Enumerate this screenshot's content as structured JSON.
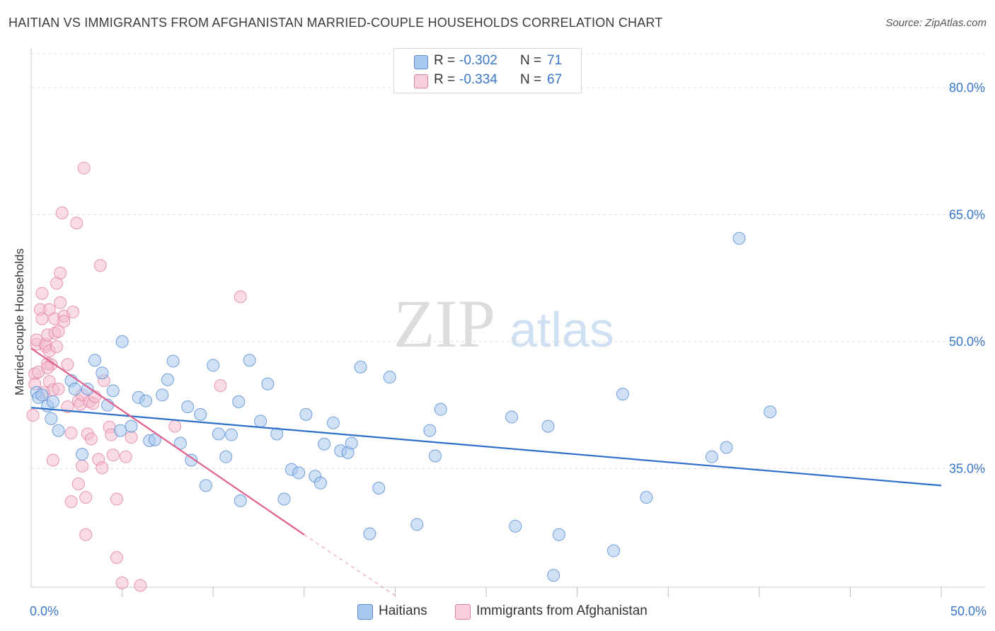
{
  "title": "HAITIAN VS IMMIGRANTS FROM AFGHANISTAN MARRIED-COUPLE HOUSEHOLDS CORRELATION CHART",
  "source": "Source: ZipAtlas.com",
  "watermark": {
    "zip": "ZIP",
    "atlas": "atlas"
  },
  "stats": [
    {
      "r_label": "R =",
      "r_value": "-0.302",
      "n_label": "N =",
      "n_value": "71"
    },
    {
      "r_label": "R =",
      "r_value": "-0.334",
      "n_label": "N =",
      "n_value": "67"
    }
  ],
  "legend": [
    {
      "label": "Haitians"
    },
    {
      "label": "Immigrants from Afghanistan"
    }
  ],
  "colors": {
    "haitian_fill": "#a9c8ee",
    "haitian_stroke": "#5b8fd4",
    "haitian_line": "#2e6fcb",
    "afghan_fill": "#f4bdd0",
    "afghan_stroke": "#e27fa2",
    "afghan_line": "#e0608f",
    "axis_text": "#3a77c8",
    "grid": "#dddddd"
  },
  "chart_data": {
    "type": "scatter",
    "xlabel": "",
    "ylabel": "Married-couple Households",
    "xlim": [
      0,
      50
    ],
    "ylim": [
      21,
      84
    ],
    "x_tick_labels": [
      {
        "value": 0,
        "label": "0.0%"
      },
      {
        "value": 50,
        "label": "50.0%"
      }
    ],
    "y_tick_labels": [
      {
        "value": 80,
        "label": "80.0%"
      },
      {
        "value": 65,
        "label": "65.0%"
      },
      {
        "value": 50,
        "label": "50.0%"
      },
      {
        "value": 35,
        "label": "35.0%"
      }
    ],
    "x_minor_ticks": [
      5,
      10,
      15,
      20,
      25,
      30,
      35,
      40,
      45,
      50
    ],
    "series": [
      {
        "name": "Haitians",
        "r": -0.302,
        "n": 71,
        "trend": {
          "x": [
            0,
            50
          ],
          "y": [
            42.2,
            33.0
          ]
        },
        "points": [
          [
            0.3,
            44.0
          ],
          [
            0.4,
            43.4
          ],
          [
            0.6,
            43.7
          ],
          [
            0.9,
            42.4
          ],
          [
            1.1,
            40.9
          ],
          [
            1.2,
            42.9
          ],
          [
            1.5,
            39.5
          ],
          [
            2.2,
            45.4
          ],
          [
            2.4,
            44.4
          ],
          [
            2.8,
            36.7
          ],
          [
            3.1,
            44.4
          ],
          [
            3.5,
            47.8
          ],
          [
            3.9,
            46.3
          ],
          [
            4.2,
            42.5
          ],
          [
            4.5,
            44.2
          ],
          [
            4.9,
            39.5
          ],
          [
            5.0,
            50.0
          ],
          [
            5.5,
            40.0
          ],
          [
            5.9,
            43.4
          ],
          [
            6.3,
            43.0
          ],
          [
            6.5,
            38.3
          ],
          [
            6.8,
            38.4
          ],
          [
            7.2,
            43.7
          ],
          [
            7.5,
            45.5
          ],
          [
            7.8,
            47.7
          ],
          [
            8.2,
            38.0
          ],
          [
            8.6,
            42.3
          ],
          [
            8.8,
            36.0
          ],
          [
            9.3,
            41.4
          ],
          [
            9.6,
            33.0
          ],
          [
            10.0,
            47.2
          ],
          [
            10.3,
            39.1
          ],
          [
            10.7,
            36.4
          ],
          [
            11.0,
            39.0
          ],
          [
            11.4,
            42.9
          ],
          [
            11.5,
            31.2
          ],
          [
            12.0,
            47.8
          ],
          [
            12.6,
            40.6
          ],
          [
            13.0,
            45.0
          ],
          [
            13.5,
            39.1
          ],
          [
            13.9,
            31.4
          ],
          [
            14.3,
            34.9
          ],
          [
            14.7,
            34.5
          ],
          [
            15.1,
            41.4
          ],
          [
            15.6,
            34.1
          ],
          [
            15.9,
            33.3
          ],
          [
            16.1,
            37.9
          ],
          [
            16.6,
            40.4
          ],
          [
            17.0,
            37.1
          ],
          [
            17.4,
            36.9
          ],
          [
            17.6,
            38.0
          ],
          [
            18.1,
            47.0
          ],
          [
            18.6,
            27.3
          ],
          [
            19.1,
            32.7
          ],
          [
            19.7,
            45.8
          ],
          [
            21.2,
            28.4
          ],
          [
            21.9,
            39.5
          ],
          [
            22.2,
            36.5
          ],
          [
            22.5,
            42.0
          ],
          [
            26.4,
            41.1
          ],
          [
            26.6,
            28.2
          ],
          [
            28.4,
            40.0
          ],
          [
            28.7,
            22.4
          ],
          [
            29.0,
            27.2
          ],
          [
            32.0,
            25.3
          ],
          [
            32.5,
            43.8
          ],
          [
            33.8,
            31.6
          ],
          [
            37.4,
            36.4
          ],
          [
            38.2,
            37.5
          ],
          [
            38.9,
            62.2
          ],
          [
            40.6,
            41.7
          ]
        ]
      },
      {
        "name": "Immigrants from Afghanistan",
        "r": -0.334,
        "n": 67,
        "trend": {
          "x": [
            0,
            15
          ],
          "y": [
            49.2,
            27.2
          ]
        },
        "trend_dashed": {
          "x": [
            15,
            20
          ],
          "y": [
            27.2,
            20.0
          ]
        },
        "points": [
          [
            0.1,
            41.3
          ],
          [
            0.2,
            46.2
          ],
          [
            0.2,
            45.0
          ],
          [
            0.3,
            49.7
          ],
          [
            0.3,
            50.2
          ],
          [
            0.4,
            46.4
          ],
          [
            0.5,
            53.8
          ],
          [
            0.6,
            52.7
          ],
          [
            0.6,
            55.7
          ],
          [
            0.8,
            49.4
          ],
          [
            0.8,
            49.7
          ],
          [
            0.9,
            47.4
          ],
          [
            0.9,
            50.8
          ],
          [
            1.0,
            45.3
          ],
          [
            1.0,
            53.8
          ],
          [
            1.0,
            48.9
          ],
          [
            1.1,
            47.3
          ],
          [
            1.2,
            44.3
          ],
          [
            1.3,
            52.7
          ],
          [
            1.3,
            51.0
          ],
          [
            1.4,
            56.9
          ],
          [
            1.4,
            49.4
          ],
          [
            1.5,
            51.2
          ],
          [
            1.6,
            54.6
          ],
          [
            1.6,
            58.1
          ],
          [
            1.7,
            65.2
          ],
          [
            1.8,
            53.0
          ],
          [
            1.8,
            52.4
          ],
          [
            2.0,
            47.3
          ],
          [
            2.2,
            39.2
          ],
          [
            2.2,
            31.1
          ],
          [
            2.3,
            53.5
          ],
          [
            2.5,
            64.0
          ],
          [
            2.6,
            33.2
          ],
          [
            2.6,
            43.0
          ],
          [
            2.7,
            42.6
          ],
          [
            2.8,
            43.7
          ],
          [
            2.8,
            35.3
          ],
          [
            2.9,
            70.5
          ],
          [
            3.0,
            31.6
          ],
          [
            3.0,
            27.2
          ],
          [
            3.1,
            39.1
          ],
          [
            3.2,
            42.9
          ],
          [
            3.3,
            38.5
          ],
          [
            3.4,
            42.7
          ],
          [
            3.7,
            36.1
          ],
          [
            3.8,
            59.0
          ],
          [
            3.9,
            35.1
          ],
          [
            4.0,
            45.4
          ],
          [
            4.3,
            39.9
          ],
          [
            4.4,
            39.0
          ],
          [
            4.5,
            36.6
          ],
          [
            4.7,
            31.4
          ],
          [
            4.7,
            24.5
          ],
          [
            5.0,
            21.5
          ],
          [
            5.2,
            36.4
          ],
          [
            5.5,
            38.7
          ],
          [
            6.0,
            21.2
          ],
          [
            7.9,
            40.0
          ],
          [
            10.4,
            44.8
          ],
          [
            11.5,
            55.3
          ],
          [
            1.5,
            44.4
          ],
          [
            0.9,
            46.9
          ],
          [
            2.0,
            42.3
          ],
          [
            3.5,
            43.5
          ],
          [
            1.2,
            36.0
          ],
          [
            0.7,
            44.0
          ]
        ]
      }
    ]
  }
}
